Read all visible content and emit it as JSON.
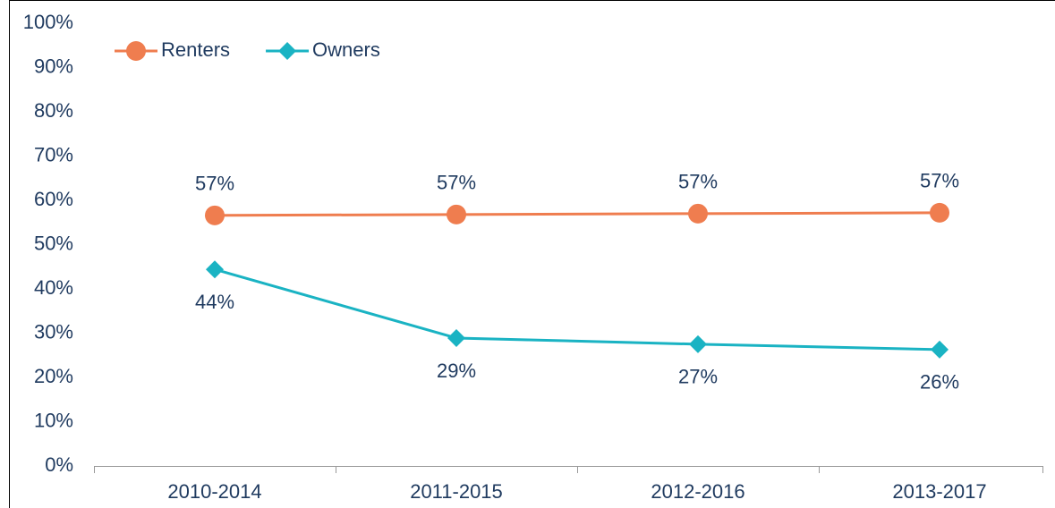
{
  "chart_data": {
    "type": "line",
    "categories": [
      "2010-2014",
      "2011-2015",
      "2012-2016",
      "2013-2017"
    ],
    "series": [
      {
        "name": "Renters",
        "color": "#ef7d4f",
        "marker": "circle",
        "values": [
          56.6,
          56.8,
          57.0,
          57.2
        ],
        "value_labels": [
          "57%",
          "57%",
          "57%",
          "57%"
        ],
        "label_position": "above"
      },
      {
        "name": "Owners",
        "color": "#1ab3c3",
        "marker": "diamond",
        "values": [
          44.4,
          28.9,
          27.5,
          26.3
        ],
        "value_labels": [
          "44%",
          "29%",
          "27%",
          "26%"
        ],
        "label_position": "below"
      }
    ],
    "ylim": [
      0,
      100
    ],
    "yticks": [
      {
        "value": 0,
        "label": "0%"
      },
      {
        "value": 10,
        "label": "10%"
      },
      {
        "value": 20,
        "label": "20%"
      },
      {
        "value": 30,
        "label": "30%"
      },
      {
        "value": 40,
        "label": "40%"
      },
      {
        "value": 50,
        "label": "50%"
      },
      {
        "value": 60,
        "label": "60%"
      },
      {
        "value": 70,
        "label": "70%"
      },
      {
        "value": 80,
        "label": "80%"
      },
      {
        "value": 90,
        "label": "90%"
      },
      {
        "value": 100,
        "label": "100%"
      }
    ],
    "grid": false,
    "legend": "top-left"
  }
}
